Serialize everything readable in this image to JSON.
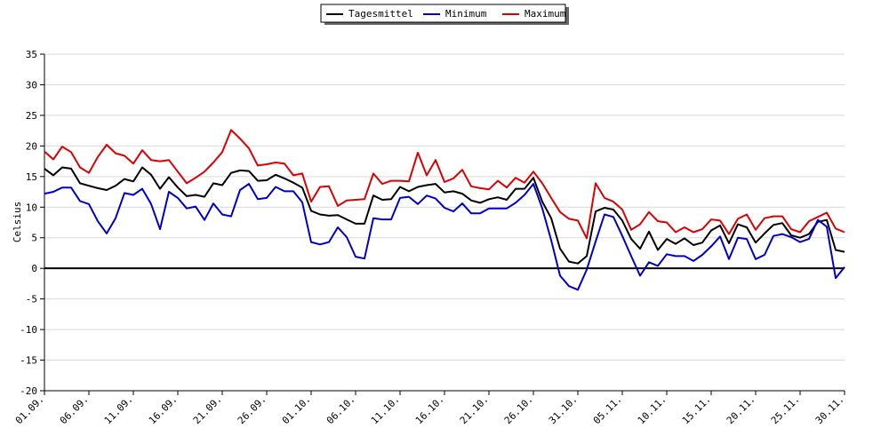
{
  "chart_data": {
    "type": "line",
    "ylabel": "Celsius",
    "ylim": [
      -20,
      35
    ],
    "yticks": [
      35,
      30,
      25,
      20,
      15,
      10,
      5,
      0,
      -5,
      -10,
      -15,
      -20
    ],
    "grid": true,
    "legend_position": "top-center",
    "x_tick_labels": [
      "01.09.",
      "06.09.",
      "11.09.",
      "16.09.",
      "21.09.",
      "26.09.",
      "01.10.",
      "06.10.",
      "11.10.",
      "16.10.",
      "21.10.",
      "26.10.",
      "31.10.",
      "05.11.",
      "10.11.",
      "15.11.",
      "20.11.",
      "25.11.",
      "30.11."
    ],
    "series": [
      {
        "name": "Tagesmittel",
        "color": "#000000",
        "values": [
          16.3,
          15.2,
          16.5,
          16.3,
          13.9,
          13.5,
          13.1,
          12.8,
          13.5,
          14.6,
          14.2,
          16.5,
          15.3,
          13.0,
          14.9,
          13.2,
          11.8,
          12.0,
          11.7,
          13.9,
          13.6,
          15.6,
          16.0,
          15.9,
          14.3,
          14.4,
          15.3,
          14.7,
          14.0,
          13.2,
          9.4,
          8.8,
          8.6,
          8.7,
          8.0,
          7.3,
          7.3,
          11.9,
          11.2,
          11.3,
          13.3,
          12.6,
          13.3,
          13.6,
          13.8,
          12.4,
          12.6,
          12.2,
          11.1,
          10.7,
          11.3,
          11.6,
          11.2,
          13.0,
          13.0,
          14.8,
          10.9,
          8.2,
          3.2,
          1.1,
          0.8,
          2.0,
          9.3,
          9.9,
          9.6,
          7.8,
          4.8,
          3.2,
          6.0,
          3.0,
          4.8,
          4.0,
          4.9,
          3.8,
          4.2,
          6.2,
          7.0,
          4.1,
          7.2,
          6.7,
          4.2,
          5.7,
          7.1,
          7.4,
          5.4,
          5.0,
          5.6,
          7.6,
          7.9,
          3.0,
          2.7
        ]
      },
      {
        "name": "Minimum",
        "color": "#0000cc",
        "values": [
          12.2,
          12.5,
          13.2,
          13.2,
          11.0,
          10.5,
          7.7,
          5.7,
          8.2,
          12.3,
          12.0,
          13.0,
          10.5,
          6.4,
          12.5,
          11.5,
          9.8,
          10.1,
          7.9,
          10.6,
          8.8,
          8.5,
          12.8,
          13.8,
          11.3,
          11.5,
          13.3,
          12.6,
          12.6,
          10.8,
          4.3,
          3.9,
          4.3,
          6.7,
          5.1,
          1.9,
          1.6,
          8.2,
          8.0,
          8.0,
          11.5,
          11.7,
          10.5,
          11.9,
          11.4,
          9.9,
          9.3,
          10.6,
          9.0,
          9.0,
          9.8,
          9.8,
          9.8,
          10.7,
          12.0,
          13.8,
          9.8,
          4.6,
          -1.2,
          -2.9,
          -3.5,
          -0.2,
          4.4,
          8.8,
          8.4,
          5.3,
          2.0,
          -1.2,
          1.0,
          0.4,
          2.3,
          2.0,
          2.0,
          1.2,
          2.2,
          3.6,
          5.2,
          1.5,
          5.0,
          4.8,
          1.5,
          2.2,
          5.3,
          5.6,
          5.1,
          4.3,
          4.8,
          7.9,
          6.8,
          -1.6,
          0.2
        ]
      },
      {
        "name": "Maximum",
        "color": "#dd0000",
        "values": [
          19.1,
          17.8,
          19.9,
          19.0,
          16.5,
          15.6,
          18.2,
          20.2,
          18.8,
          18.4,
          17.1,
          19.3,
          17.7,
          17.5,
          17.7,
          15.8,
          13.9,
          14.8,
          15.8,
          17.3,
          19.0,
          22.6,
          21.2,
          19.6,
          16.8,
          17.0,
          17.3,
          17.1,
          15.2,
          15.5,
          10.9,
          13.3,
          13.4,
          10.2,
          11.1,
          11.2,
          11.3,
          15.5,
          13.8,
          14.3,
          14.3,
          14.2,
          18.9,
          15.2,
          17.7,
          14.1,
          14.7,
          16.1,
          13.4,
          13.1,
          12.9,
          14.3,
          13.2,
          14.8,
          14.0,
          15.8,
          13.9,
          11.5,
          9.2,
          8.1,
          7.8,
          4.9,
          13.9,
          11.5,
          10.9,
          9.6,
          6.3,
          7.2,
          9.2,
          7.7,
          7.5,
          5.9,
          6.7,
          5.9,
          6.4,
          8.0,
          7.8,
          5.6,
          8.1,
          8.8,
          6.3,
          8.2,
          8.5,
          8.5,
          6.4,
          5.9,
          7.7,
          8.4,
          9.1,
          6.5,
          5.9
        ]
      }
    ]
  }
}
